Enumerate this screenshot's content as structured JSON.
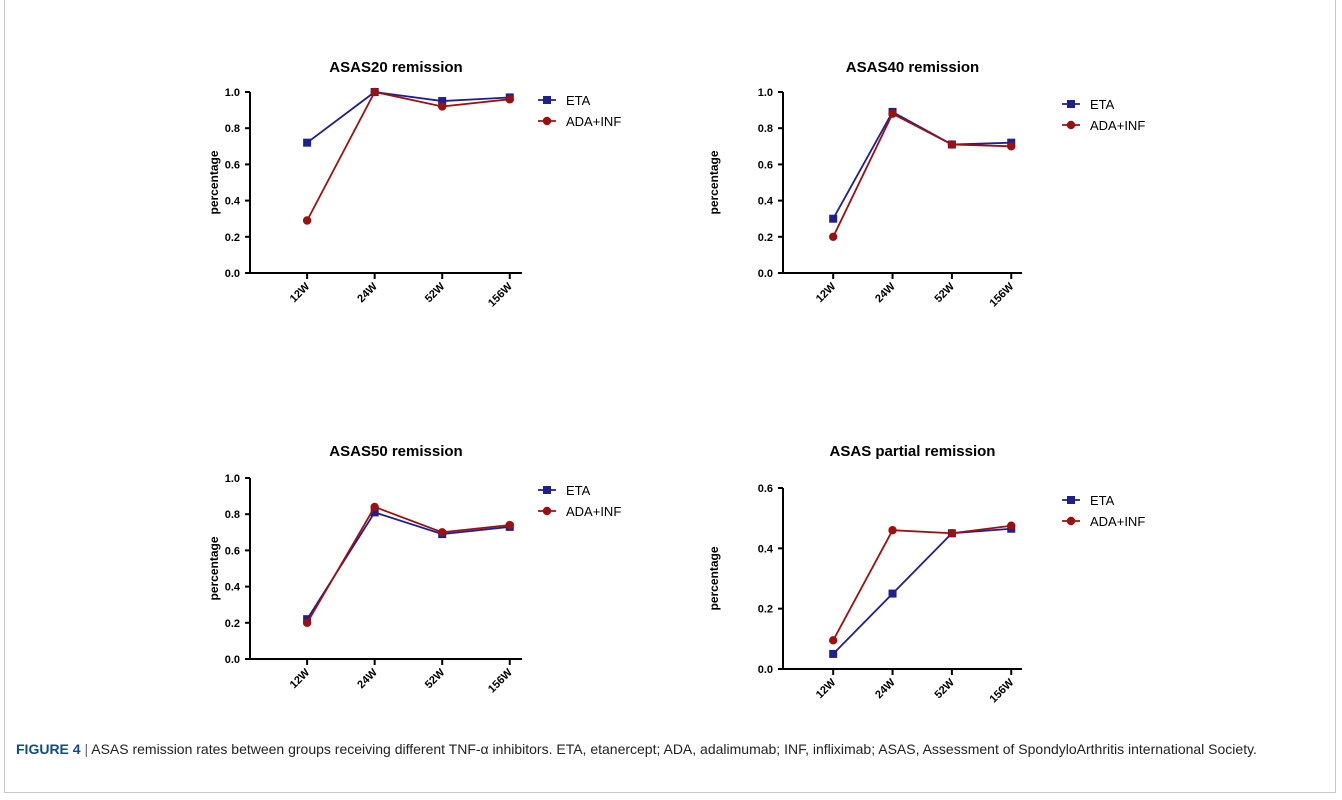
{
  "caption": {
    "label": "FIGURE 4",
    "separator": " | ",
    "text": "ASAS remission rates between groups receiving different TNF-α inhibitors. ETA, etanercept; ADA, adalimumab; INF, infliximab; ASAS, Assessment of SpondyloArthritis international Society."
  },
  "colors": {
    "ETA": "#1f1f8f",
    "ADA+INF": "#9b1111",
    "axis": "#000000"
  },
  "chart_data": [
    {
      "type": "line",
      "title": "ASAS20 remission",
      "ylabel": "percentage",
      "categories": [
        "12W",
        "24W",
        "52W",
        "156W"
      ],
      "ylim": [
        0,
        1.0
      ],
      "yticks": [
        "0.0",
        "0.2",
        "0.4",
        "0.6",
        "0.8",
        "1.0"
      ],
      "legend_placement": "right",
      "series": [
        {
          "name": "ETA",
          "marker": "square",
          "values": [
            0.72,
            1.0,
            0.95,
            0.97
          ]
        },
        {
          "name": "ADA+INF",
          "marker": "circle",
          "values": [
            0.29,
            1.0,
            0.92,
            0.96
          ]
        }
      ]
    },
    {
      "type": "line",
      "title": "ASAS40 remission",
      "ylabel": "percentage",
      "categories": [
        "12W",
        "24W",
        "52W",
        "156W"
      ],
      "ylim": [
        0,
        1.0
      ],
      "yticks": [
        "0.0",
        "0.2",
        "0.4",
        "0.6",
        "0.8",
        "1.0"
      ],
      "legend_placement": "right",
      "series": [
        {
          "name": "ETA",
          "marker": "square",
          "values": [
            0.3,
            0.89,
            0.71,
            0.72
          ]
        },
        {
          "name": "ADA+INF",
          "marker": "circle",
          "values": [
            0.2,
            0.88,
            0.71,
            0.7
          ]
        }
      ]
    },
    {
      "type": "line",
      "title": "ASAS50 remission",
      "ylabel": "percentage",
      "categories": [
        "12W",
        "24W",
        "52W",
        "156W"
      ],
      "ylim": [
        0,
        1.0
      ],
      "yticks": [
        "0.0",
        "0.2",
        "0.4",
        "0.6",
        "0.8",
        "1.0"
      ],
      "legend_placement": "right",
      "series": [
        {
          "name": "ETA",
          "marker": "square",
          "values": [
            0.22,
            0.81,
            0.69,
            0.73
          ]
        },
        {
          "name": "ADA+INF",
          "marker": "circle",
          "values": [
            0.2,
            0.84,
            0.7,
            0.74
          ]
        }
      ]
    },
    {
      "type": "line",
      "title": "ASAS partial remission",
      "ylabel": "percentage",
      "categories": [
        "12W",
        "24W",
        "52W",
        "156W"
      ],
      "ylim": [
        0,
        0.6
      ],
      "yticks": [
        "0.0",
        "0.2",
        "0.4",
        "0.6"
      ],
      "legend_placement": "right",
      "series": [
        {
          "name": "ETA",
          "marker": "square",
          "values": [
            0.05,
            0.25,
            0.45,
            0.465
          ]
        },
        {
          "name": "ADA+INF",
          "marker": "circle",
          "values": [
            0.095,
            0.46,
            0.45,
            0.475
          ]
        }
      ]
    }
  ]
}
